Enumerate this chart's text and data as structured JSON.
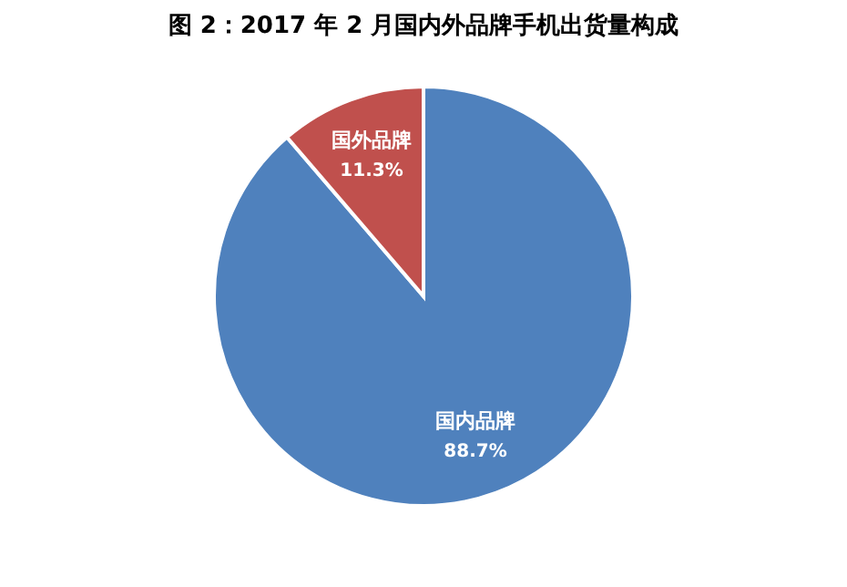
{
  "chart_data": {
    "type": "pie",
    "title": "图 2：2017 年 2 月国内外品牌手机出货量构成",
    "categories": [
      "国内品牌",
      "国外品牌"
    ],
    "values": [
      88.7,
      11.3
    ],
    "colors": [
      "#4f81bd",
      "#c0504d"
    ],
    "value_labels": [
      "88.7%",
      "11.3%"
    ],
    "legend": false
  }
}
